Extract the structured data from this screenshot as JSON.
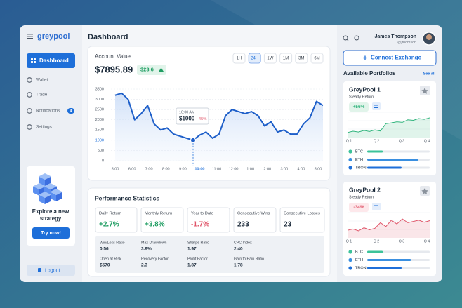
{
  "sidebar": {
    "logo": "greypool",
    "nav": [
      {
        "label": "Dashboard"
      },
      {
        "label": "Wallet"
      },
      {
        "label": "Trade"
      },
      {
        "label": "Notifications",
        "badge": "4"
      },
      {
        "label": "Settings"
      }
    ],
    "promo": {
      "title_lines": [
        "Explore a new",
        "strategy"
      ],
      "button": "Try now!"
    },
    "logout": "Logout"
  },
  "header": {
    "title": "Dashboard",
    "user": "James Thompson",
    "handle": "@jthomson"
  },
  "account": {
    "label": "Account Value",
    "value": "$7895.89",
    "change": "$23.6",
    "ranges": [
      "1H",
      "24H",
      "1W",
      "1M",
      "3M",
      "6M"
    ],
    "chart": {
      "ylim": [
        0,
        3500
      ],
      "yticks": [
        0,
        500,
        1000,
        1500,
        2000,
        2500,
        3000,
        3500
      ],
      "xticks": [
        "5:00",
        "6:00",
        "7:00",
        "8:00",
        "9:00",
        "10:00",
        "11:00",
        "12:00",
        "1:00",
        "2:00",
        "3:00",
        "4:00",
        "5:00"
      ],
      "values": [
        3200,
        3300,
        3000,
        2000,
        2300,
        2700,
        1800,
        1500,
        1600,
        1300,
        1200,
        1100,
        1000,
        1250,
        1400,
        1100,
        1300,
        2200,
        2500,
        2400,
        2300,
        2400,
        2200,
        1700,
        1900,
        1400,
        1500,
        1300,
        1300,
        1800,
        2100,
        2900,
        2700
      ],
      "tooltip": {
        "time": "10:00 AM",
        "value": "$1000",
        "change": "-45%"
      }
    }
  },
  "performance": {
    "title": "Performance Statistics",
    "stats": [
      {
        "label": "Daily Return",
        "value": "+2.7%"
      },
      {
        "label": "Monthly Return",
        "value": "+3.8%"
      },
      {
        "label": "Year to Date",
        "value": "-1.7%"
      },
      {
        "label": "Consecutive Wins",
        "value": "233"
      },
      {
        "label": "Consecutive Losses",
        "value": "23"
      }
    ],
    "metrics": [
      {
        "label": "Win/Loss Ratio",
        "value": "0.56"
      },
      {
        "label": "Max Drawdown",
        "value": "3.9%"
      },
      {
        "label": "Sharpe Ratio",
        "value": "1.97"
      },
      {
        "label": "CPC Index",
        "value": "2.40"
      },
      {
        "label": "Open at Risk",
        "value": "$570"
      },
      {
        "label": "Recovery Factor",
        "value": "2.3"
      },
      {
        "label": "Profit Factor",
        "value": "1.87"
      },
      {
        "label": "Gain to Pain Ratio",
        "value": "1.78"
      }
    ]
  },
  "right": {
    "connect": "Connect Exchange",
    "portfolios_title": "Available Portfolios",
    "see_all": "See all",
    "portfolios": [
      {
        "name": "GreyPool 1",
        "subtitle": "Steady Return",
        "change": "+56%",
        "color": "#2fb47c",
        "quarters": [
          "Q 1",
          "Q 2",
          "Q 3",
          "Q 4"
        ],
        "values": [
          20,
          25,
          22,
          28,
          24,
          30,
          26,
          55,
          58,
          62,
          60,
          70,
          68,
          75,
          72,
          78
        ],
        "assets": [
          {
            "name": "BTC",
            "value": 25
          },
          {
            "name": "ETH",
            "value": 82
          },
          {
            "name": "TRON",
            "value": 55
          }
        ]
      },
      {
        "name": "GreyPool 2",
        "subtitle": "Steady Return",
        "change": "-34%",
        "color": "#e0566a",
        "quarters": [
          "Q 1",
          "Q 2",
          "Q 3",
          "Q 4"
        ],
        "values": [
          30,
          35,
          28,
          40,
          32,
          38,
          60,
          45,
          70,
          55,
          75,
          60,
          65,
          70,
          62,
          68
        ],
        "assets": [
          {
            "name": "BTC",
            "value": 25
          },
          {
            "name": "ETH",
            "value": 70
          },
          {
            "name": "TRON",
            "value": 55
          }
        ]
      }
    ]
  }
}
